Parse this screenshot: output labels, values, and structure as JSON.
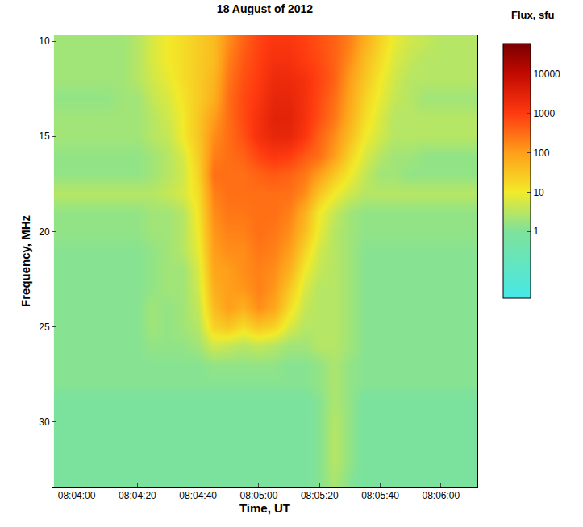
{
  "chart_data": {
    "type": "heatmap",
    "title": "18 August of 2012",
    "x_label": "Time, UT",
    "y_label": "Frequency, MHz",
    "colorbar_title": "Flux, sfu",
    "log": true,
    "x": [
      "08:03:55",
      "08:04:00",
      "08:04:05",
      "08:04:10",
      "08:04:15",
      "08:04:20",
      "08:04:25",
      "08:04:30",
      "08:04:35",
      "08:04:40",
      "08:04:45",
      "08:04:50",
      "08:04:55",
      "08:05:00",
      "08:05:05",
      "08:05:10",
      "08:05:15",
      "08:05:20",
      "08:05:25",
      "08:05:30",
      "08:05:35",
      "08:05:40",
      "08:05:45",
      "08:05:50",
      "08:05:55",
      "08:06:00",
      "08:06:05",
      "08:06:10"
    ],
    "y": [
      10,
      11,
      12,
      13,
      14,
      15,
      16,
      17,
      18,
      19,
      20,
      21,
      22,
      23,
      24,
      25,
      26,
      27,
      28,
      29,
      30,
      31,
      32,
      33
    ],
    "z": [
      [
        2,
        2,
        2,
        2,
        2,
        3,
        6,
        10,
        15,
        25,
        40,
        150,
        400,
        800,
        1200,
        1200,
        900,
        600,
        400,
        200,
        60,
        20,
        8,
        5,
        4,
        3,
        3,
        3
      ],
      [
        2,
        2,
        2,
        2,
        2,
        3,
        6,
        10,
        15,
        25,
        40,
        200,
        500,
        900,
        1500,
        1500,
        1000,
        700,
        400,
        150,
        40,
        15,
        6,
        4,
        3,
        3,
        3,
        3
      ],
      [
        2,
        2,
        2,
        2,
        2,
        3,
        5,
        8,
        15,
        25,
        50,
        250,
        600,
        1000,
        2000,
        2000,
        1500,
        800,
        400,
        100,
        30,
        10,
        5,
        3,
        3,
        3,
        3,
        3
      ],
      [
        1.5,
        1.5,
        1.5,
        1.5,
        2,
        2,
        4,
        6,
        12,
        25,
        60,
        300,
        700,
        1200,
        2500,
        2500,
        1500,
        700,
        300,
        80,
        20,
        8,
        4,
        3,
        2,
        2,
        2,
        2
      ],
      [
        2,
        2,
        2,
        2,
        2,
        2,
        3,
        5,
        10,
        30,
        100,
        300,
        700,
        1500,
        3000,
        3000,
        1500,
        600,
        250,
        60,
        15,
        6,
        3,
        3,
        3,
        3,
        3,
        3
      ],
      [
        2,
        2,
        2,
        2,
        2,
        2,
        3,
        4,
        10,
        30,
        150,
        300,
        600,
        1500,
        2500,
        2500,
        1200,
        400,
        150,
        40,
        10,
        5,
        3,
        3,
        3,
        3,
        3,
        3
      ],
      [
        1.5,
        1.5,
        1.5,
        1.5,
        1.5,
        1.5,
        2,
        3,
        6,
        25,
        200,
        300,
        400,
        800,
        1200,
        1000,
        500,
        300,
        100,
        20,
        6,
        3,
        2,
        2,
        1.5,
        1.5,
        1.5,
        1.5
      ],
      [
        1.5,
        1.5,
        1.5,
        1.5,
        1.5,
        1.5,
        2,
        3,
        5,
        20,
        300,
        300,
        300,
        400,
        500,
        400,
        250,
        100,
        30,
        10,
        4,
        2,
        2,
        1.5,
        1.5,
        1.5,
        1.5,
        1.5
      ],
      [
        3,
        3,
        3,
        3,
        3,
        3,
        3,
        4,
        6,
        15,
        200,
        300,
        300,
        300,
        300,
        300,
        150,
        30,
        10,
        5,
        3,
        3,
        3,
        3,
        3,
        3,
        3,
        3
      ],
      [
        1.5,
        1.5,
        1.5,
        1.5,
        1.5,
        1.5,
        2,
        2,
        3,
        12,
        150,
        250,
        250,
        300,
        300,
        200,
        60,
        10,
        4,
        2,
        1.5,
        1.5,
        1.5,
        1.5,
        1.5,
        1.5,
        1.5,
        1.5
      ],
      [
        1.5,
        1.5,
        1.5,
        1.5,
        1.5,
        1.5,
        2,
        2,
        3,
        10,
        120,
        200,
        200,
        300,
        250,
        150,
        40,
        8,
        3,
        2,
        1.5,
        1.5,
        1.5,
        1.5,
        1.5,
        1.5,
        1.5,
        1.5
      ],
      [
        1.2,
        1.2,
        1.2,
        1.2,
        1.2,
        1.2,
        1.5,
        2,
        3,
        8,
        100,
        150,
        150,
        250,
        200,
        100,
        20,
        5,
        3,
        2,
        1.2,
        1.2,
        1.2,
        1.2,
        1.2,
        1.2,
        1.2,
        1.2
      ],
      [
        1.2,
        1.2,
        1.2,
        1.2,
        1.2,
        1.2,
        1.5,
        2,
        2,
        6,
        80,
        100,
        150,
        200,
        150,
        60,
        10,
        4,
        3,
        2,
        1.2,
        1.2,
        1.2,
        1.2,
        1.2,
        1.2,
        1.2,
        1.2
      ],
      [
        1.2,
        1.2,
        1.2,
        1.2,
        1.2,
        1.2,
        1.5,
        2,
        2,
        5,
        60,
        100,
        120,
        200,
        120,
        30,
        6,
        3,
        3,
        2,
        1.2,
        1.2,
        1.2,
        1.2,
        1.2,
        1.2,
        1.2,
        1.2
      ],
      [
        1.2,
        1.2,
        1.2,
        1.2,
        1.2,
        1.2,
        2,
        1.5,
        2,
        4,
        40,
        100,
        60,
        150,
        80,
        15,
        4,
        3,
        3,
        2,
        1.2,
        1.2,
        1.2,
        1.2,
        1.2,
        1.2,
        1.2,
        1.2
      ],
      [
        1.2,
        1.2,
        1.2,
        1.2,
        1.2,
        1.2,
        2,
        1.5,
        2,
        3,
        20,
        30,
        15,
        30,
        20,
        6,
        3,
        3,
        3,
        2,
        1.2,
        1.2,
        1.2,
        1.2,
        1.2,
        1.2,
        1.2,
        1.2
      ],
      [
        1.2,
        1.2,
        1.2,
        1.2,
        1.2,
        1.2,
        1.5,
        1.5,
        1.5,
        2,
        5,
        4,
        3,
        4,
        3,
        2,
        2,
        3,
        3,
        2,
        1.2,
        1.2,
        1.2,
        1.2,
        1.2,
        1.2,
        1.2,
        1.2
      ],
      [
        1.2,
        1.2,
        1.2,
        1.2,
        1.2,
        1.2,
        1.2,
        1.2,
        1.2,
        1.2,
        1.5,
        1.5,
        1.5,
        1.5,
        1.5,
        1.2,
        1.2,
        1.5,
        2.5,
        1.5,
        1.2,
        1.2,
        1.2,
        1.2,
        1.2,
        1.2,
        1.2,
        1.2
      ],
      [
        1.2,
        1.2,
        1.2,
        1.2,
        1.2,
        1.2,
        1.2,
        1.2,
        1.2,
        1.2,
        1.2,
        1.2,
        1.2,
        1.2,
        1.2,
        1.2,
        1.2,
        1.5,
        2.5,
        1.5,
        1.2,
        1.2,
        1.2,
        1.2,
        1.2,
        1.2,
        1.2,
        1.2
      ],
      [
        0.8,
        0.8,
        0.8,
        0.8,
        0.8,
        0.8,
        0.8,
        0.8,
        0.8,
        0.8,
        0.8,
        0.8,
        0.8,
        0.8,
        0.8,
        0.8,
        0.8,
        1.2,
        2.5,
        1.5,
        0.8,
        0.8,
        0.8,
        0.8,
        0.8,
        0.8,
        0.8,
        0.8
      ],
      [
        0.8,
        0.8,
        0.8,
        0.8,
        0.8,
        0.8,
        0.8,
        0.8,
        0.8,
        0.8,
        0.8,
        0.8,
        0.8,
        0.8,
        0.8,
        0.8,
        0.8,
        1.2,
        3,
        1.5,
        0.8,
        0.8,
        0.8,
        0.8,
        0.8,
        0.8,
        0.8,
        0.8
      ],
      [
        0.8,
        0.8,
        0.8,
        0.8,
        0.8,
        0.8,
        0.8,
        0.8,
        0.8,
        0.8,
        0.8,
        0.8,
        0.8,
        0.8,
        0.8,
        0.8,
        0.8,
        1.2,
        3,
        1.5,
        0.8,
        0.8,
        0.8,
        0.8,
        0.8,
        0.8,
        0.8,
        0.8
      ],
      [
        0.8,
        0.8,
        0.8,
        0.8,
        0.8,
        0.8,
        0.8,
        0.8,
        0.8,
        0.8,
        0.8,
        0.8,
        0.8,
        0.8,
        0.8,
        0.8,
        0.8,
        1.2,
        3,
        1.5,
        0.8,
        0.8,
        0.8,
        0.8,
        0.8,
        0.8,
        0.8,
        0.8
      ],
      [
        0.8,
        0.8,
        0.8,
        0.8,
        0.8,
        0.8,
        0.8,
        0.8,
        0.8,
        0.8,
        0.8,
        0.8,
        0.8,
        0.8,
        0.8,
        0.8,
        0.8,
        1.2,
        2.5,
        1.2,
        0.8,
        0.8,
        0.8,
        0.8,
        0.8,
        0.8,
        0.8,
        0.8
      ]
    ],
    "xlim": [
      "08:03:52",
      "08:06:12"
    ],
    "xticks": [
      "08:04:00",
      "08:04:20",
      "08:04:40",
      "08:05:00",
      "08:05:20",
      "08:05:40",
      "08:06:00"
    ],
    "ylim": [
      33.4,
      9.7
    ],
    "yticks": [
      10,
      15,
      20,
      25,
      30
    ],
    "colorbar": {
      "range": [
        0.02,
        60000
      ],
      "ticks": [
        1,
        10,
        100,
        1000,
        10000
      ]
    }
  }
}
